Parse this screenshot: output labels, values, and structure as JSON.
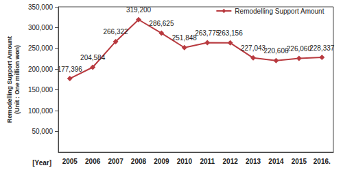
{
  "chart_data": {
    "type": "line",
    "x_label": "[Year]",
    "y_label": "Remodelling Support Amount\n(Unit : One million won)",
    "categories": [
      "2005",
      "2006",
      "2007",
      "2008",
      "2009",
      "2010",
      "2011",
      "2012",
      "2013",
      "2014",
      "2015",
      "2016."
    ],
    "series": [
      {
        "name": "Remodelling Support Amount",
        "color": "#b83a3f",
        "marker": "diamond",
        "values": [
          177396,
          204584,
          266322,
          319200,
          286625,
          251848,
          263775,
          263156,
          227043,
          220606,
          226060,
          228337
        ],
        "value_labels": [
          "177,396",
          "204,584",
          "266,322",
          "319,200",
          "286,625",
          "251,848",
          "263,775",
          "263,156",
          "227,043",
          "220,606",
          "226,060",
          "228,337"
        ]
      }
    ],
    "ylim": [
      0,
      350000
    ],
    "yticks": [
      {
        "value": 50000,
        "label": "50,000"
      },
      {
        "value": 100000,
        "label": "100,000"
      },
      {
        "value": 150000,
        "label": "150,000"
      },
      {
        "value": 200000,
        "label": "200,000"
      },
      {
        "value": 250000,
        "label": "250,000"
      },
      {
        "value": 300000,
        "label": "300,000"
      },
      {
        "value": 350000,
        "label": "350,000"
      }
    ],
    "grid": false,
    "legend": "upper right",
    "data_labels": true
  }
}
